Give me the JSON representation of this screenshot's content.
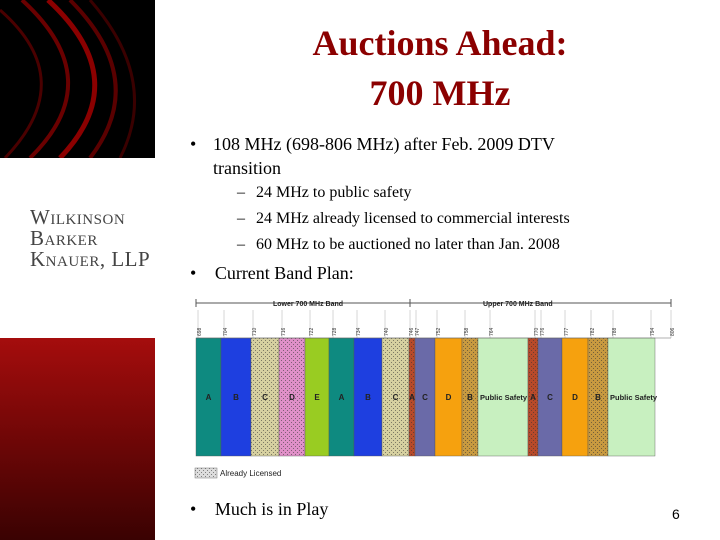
{
  "title": {
    "line1": "Auctions Ahead:",
    "line2": "700 MHz"
  },
  "logo": {
    "line1": "Wilkinson",
    "line2": "Barker",
    "line3": "Knauer, LLP"
  },
  "bullets": {
    "b1": "108 MHz (698-806 MHz) after Feb. 2009 DTV transition",
    "b1_subs": [
      "24 MHz to public safety",
      "24 MHz already licensed to commercial interests",
      "60 MHz to be auctioned no later than Jan. 2008"
    ],
    "b2": "Current Band Plan:",
    "b3": "Much is in Play",
    "bullet_char": "•",
    "dash_char": "–"
  },
  "page_number": "6",
  "band_plan": {
    "lower_label": "Lower 700 MHz Band",
    "upper_label": "Upper 700 MHz Band",
    "legend": "Already Licensed",
    "frequency_ticks": [
      "698",
      "704",
      "710",
      "716",
      "722",
      "728",
      "734",
      "740",
      "746",
      "747",
      "752",
      "758",
      "764",
      "770",
      "776",
      "777",
      "782",
      "788",
      "794",
      "806"
    ],
    "blocks": [
      {
        "label": "A",
        "color": "#0e8a80",
        "licensed": false
      },
      {
        "label": "B",
        "color": "#1e3fe0",
        "licensed": false
      },
      {
        "label": "C",
        "color": "#d6d0a0",
        "licensed": true
      },
      {
        "label": "D",
        "color": "#e090c8",
        "licensed": true
      },
      {
        "label": "E",
        "color": "#99cc22",
        "licensed": false
      },
      {
        "label": "A",
        "color": "#0e8a80",
        "licensed": false
      },
      {
        "label": "B",
        "color": "#1e3fe0",
        "licensed": false
      },
      {
        "label": "C",
        "color": "#d6d0a0",
        "licensed": true
      },
      {
        "label": "A",
        "color": "#b84a2a",
        "licensed": true
      },
      {
        "label": "C",
        "color": "#6a6aa8",
        "licensed": false
      },
      {
        "label": "D",
        "color": "#f6a10e",
        "licensed": false
      },
      {
        "label": "B",
        "color": "#c89a40",
        "licensed": true
      },
      {
        "label": "Public Safety",
        "color": "#c8f0c0",
        "licensed": false
      },
      {
        "label": "A",
        "color": "#b84a2a",
        "licensed": true
      },
      {
        "label": "C",
        "color": "#6a6aa8",
        "licensed": false
      },
      {
        "label": "D",
        "color": "#f6a10e",
        "licensed": false
      },
      {
        "label": "B",
        "color": "#c89a40",
        "licensed": true
      },
      {
        "label": "Public Safety",
        "color": "#c8f0c0",
        "licensed": false
      }
    ]
  }
}
